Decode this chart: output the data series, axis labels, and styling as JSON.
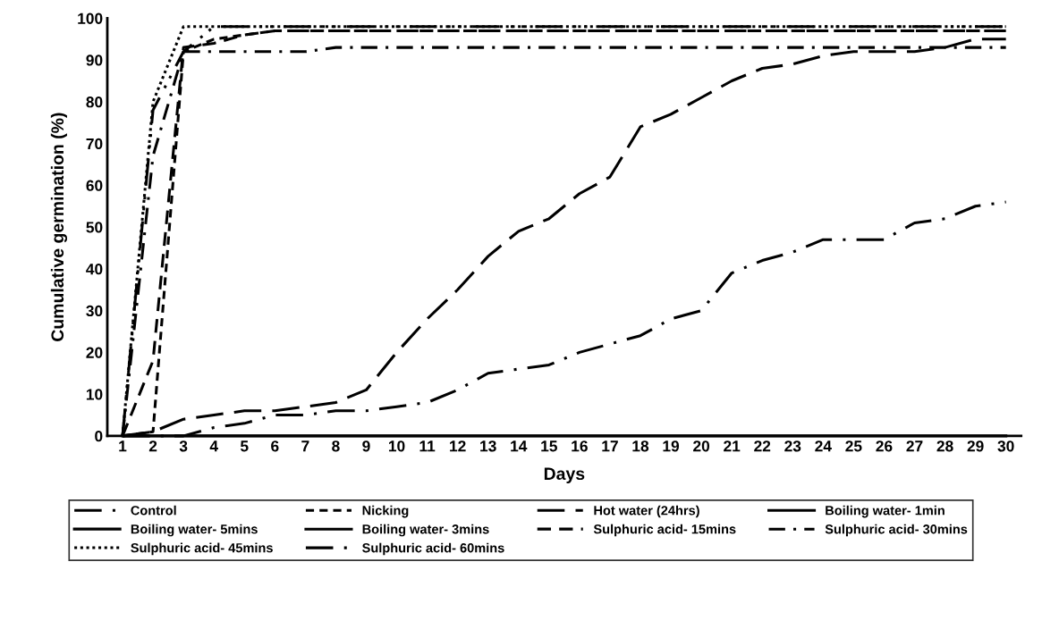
{
  "chart_data": {
    "type": "line",
    "xlabel": "Days",
    "ylabel": "Cumulative germination (%)",
    "categories": [
      "1",
      "2",
      "3",
      "4",
      "5",
      "6",
      "7",
      "8",
      "9",
      "10",
      "11",
      "12",
      "13",
      "14",
      "15",
      "16",
      "17",
      "18",
      "19",
      "20",
      "21",
      "22",
      "23",
      "24",
      "25",
      "26",
      "27",
      "28",
      "29",
      "30"
    ],
    "ylim": [
      0,
      100
    ],
    "yticks": [
      0,
      10,
      20,
      30,
      40,
      50,
      60,
      70,
      80,
      90,
      100
    ],
    "grid": false,
    "legend": "bottom",
    "marker": "none",
    "series": [
      {
        "name": "Control",
        "color": "#000000",
        "line_style": "longdashdot",
        "values": [
          0,
          0,
          0,
          2,
          3,
          5,
          5,
          6,
          6,
          7,
          8,
          11,
          15,
          16,
          17,
          20,
          22,
          24,
          28,
          30,
          39,
          42,
          44,
          47,
          47,
          47,
          51,
          52,
          55,
          56
        ]
      },
      {
        "name": "Nicking",
        "color": "#000000",
        "line_style": "dashed",
        "values": [
          0,
          1,
          92,
          95,
          96,
          97,
          97,
          97,
          97,
          97,
          97,
          97,
          97,
          97,
          97,
          97,
          97,
          97,
          97,
          97,
          97,
          97,
          97,
          97,
          97,
          97,
          97,
          97,
          97,
          97
        ]
      },
      {
        "name": "Hot water (24hrs)",
        "color": "#000000",
        "line_style": "longdash",
        "values": [
          0,
          1,
          4,
          5,
          6,
          6,
          7,
          8,
          11,
          20,
          28,
          35,
          43,
          49,
          52,
          58,
          62,
          74,
          77,
          81,
          85,
          88,
          89,
          91,
          92,
          92,
          92,
          93,
          95,
          95
        ]
      },
      {
        "name": "Boiling water- 1min",
        "color": "#000000",
        "line_style": "solid",
        "values": [
          0,
          0,
          0,
          0,
          0,
          0,
          0,
          0,
          0,
          0,
          0,
          0,
          0,
          0,
          0,
          0,
          0,
          0,
          0,
          0,
          0,
          0,
          0,
          0,
          0,
          0,
          0,
          0,
          0,
          0
        ]
      },
      {
        "name": "Boiling water- 5mins",
        "color": "#000000",
        "line_style": "solid",
        "values": [
          null,
          null,
          null,
          null,
          null,
          null,
          null,
          null,
          null,
          null,
          null,
          null,
          null,
          null,
          null,
          null,
          null,
          null,
          null,
          null,
          null,
          null,
          null,
          null,
          null,
          null,
          null,
          null,
          null,
          null
        ]
      },
      {
        "name": "Boiling water- 3mins",
        "color": "#000000",
        "line_style": "solid",
        "values": [
          null,
          null,
          null,
          null,
          null,
          null,
          null,
          null,
          null,
          null,
          null,
          null,
          null,
          null,
          null,
          null,
          null,
          null,
          null,
          null,
          null,
          null,
          null,
          null,
          null,
          null,
          null,
          null,
          null,
          null
        ]
      },
      {
        "name": "Sulphuric acid- 15mins",
        "color": "#000000",
        "line_style": "mediumdash",
        "values": [
          0,
          18,
          93,
          94,
          96,
          97,
          97,
          97,
          97,
          97,
          97,
          97,
          97,
          97,
          97,
          97,
          97,
          97,
          97,
          97,
          97,
          97,
          97,
          97,
          97,
          97,
          97,
          97,
          97,
          97
        ]
      },
      {
        "name": "Sulphuric acid- 30mins",
        "color": "#000000",
        "line_style": "dashdot",
        "values": [
          0,
          67,
          92,
          92,
          92,
          92,
          92,
          93,
          93,
          93,
          93,
          93,
          93,
          93,
          93,
          93,
          93,
          93,
          93,
          93,
          93,
          93,
          93,
          93,
          93,
          93,
          93,
          93,
          93,
          93
        ]
      },
      {
        "name": "Sulphuric acid- 45mins",
        "color": "#000000",
        "line_style": "dotted",
        "values": [
          0,
          80,
          98,
          98,
          98,
          98,
          98,
          98,
          98,
          98,
          98,
          98,
          98,
          98,
          98,
          98,
          98,
          98,
          98,
          98,
          98,
          98,
          98,
          98,
          98,
          98,
          98,
          98,
          98,
          98
        ]
      },
      {
        "name": "Sulphuric acid- 60mins",
        "color": "#000000",
        "line_style": "longdashdotdot",
        "values": [
          0,
          78,
          92,
          98,
          98,
          98,
          98,
          98,
          98,
          98,
          98,
          98,
          98,
          98,
          98,
          98,
          98,
          98,
          98,
          98,
          98,
          98,
          98,
          98,
          98,
          98,
          98,
          98,
          98,
          98
        ]
      }
    ]
  }
}
